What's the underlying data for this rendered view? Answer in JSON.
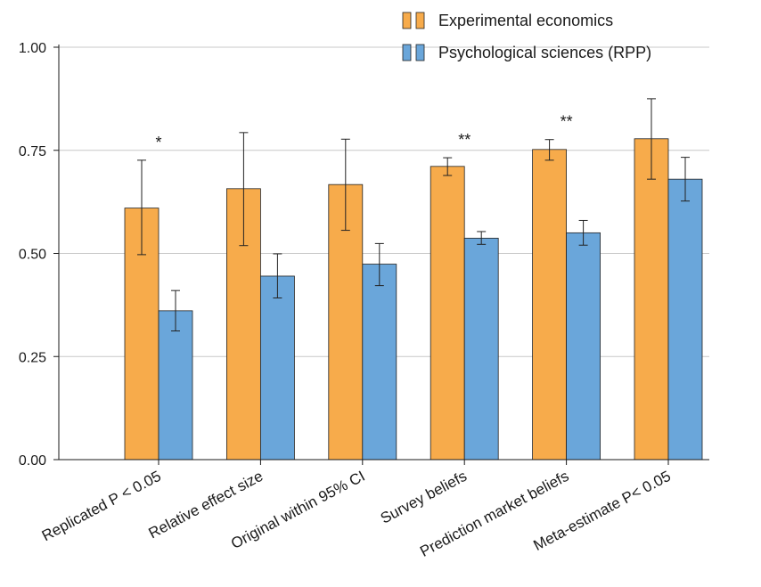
{
  "chart_data": {
    "type": "bar",
    "categories": [
      "Replicated P < 0.05",
      "Relative effect size",
      "Original within 95% CI",
      "Survey beliefs",
      "Prediction market beliefs",
      "Meta-estimate P< 0.05"
    ],
    "series": [
      {
        "name": "Experimental economics",
        "color": "#f7ab4b",
        "values": [
          0.61,
          0.657,
          0.667,
          0.711,
          0.752,
          0.778
        ],
        "err_low": [
          0.497,
          0.519,
          0.556,
          0.689,
          0.726,
          0.68
        ],
        "err_high": [
          0.726,
          0.793,
          0.777,
          0.732,
          0.776,
          0.875
        ]
      },
      {
        "name": "Psychological sciences (RPP)",
        "color": "#6aa6da",
        "values": [
          0.361,
          0.445,
          0.474,
          0.537,
          0.55,
          0.68
        ],
        "err_low": [
          0.312,
          0.392,
          0.422,
          0.522,
          0.52,
          0.627
        ],
        "err_high": [
          0.41,
          0.499,
          0.524,
          0.553,
          0.58,
          0.733
        ]
      }
    ],
    "significance": [
      "*",
      "",
      "",
      "**",
      "**",
      ""
    ],
    "yticks": [
      "0.00",
      "0.25",
      "0.50",
      "0.75",
      "1.00"
    ],
    "ylim": [
      0,
      1.0
    ],
    "grid": true,
    "legend": "top-right",
    "title": "",
    "xlabel": "",
    "ylabel": ""
  }
}
